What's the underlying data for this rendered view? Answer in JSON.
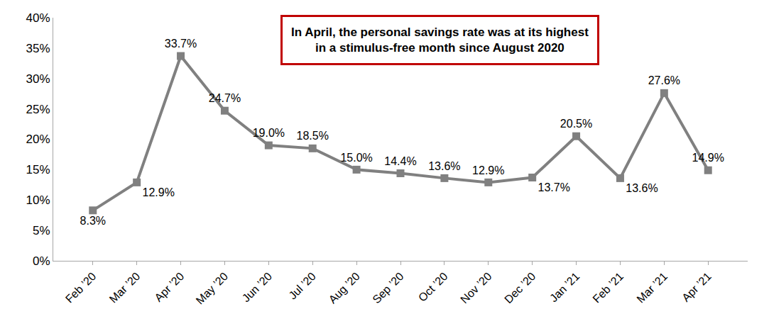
{
  "chart_data": {
    "type": "line",
    "title": "In April, the personal savings rate was at its highest\nin a stimulus-free month since August 2020",
    "categories": [
      "Feb ’20",
      "Mar ’20",
      "Apr ’20",
      "May ’20",
      "Jun ’20",
      "Jul ’20",
      "Aug ’20",
      "Sep ’20",
      "Oct ’20",
      "Nov ’20",
      "Dec ’20",
      "Jan ’21",
      "Feb ’21",
      "Mar ’21",
      "Apr ’21"
    ],
    "values": [
      8.3,
      12.9,
      33.7,
      24.7,
      19.0,
      18.5,
      15.0,
      14.4,
      13.6,
      12.9,
      13.7,
      20.5,
      13.6,
      27.6,
      14.9
    ],
    "value_labels": [
      "8.3%",
      "12.9%",
      "33.7%",
      "24.7%",
      "19.0%",
      "18.5%",
      "15.0%",
      "14.4%",
      "13.6%",
      "12.9%",
      "13.7%",
      "20.5%",
      "13.6%",
      "27.6%",
      "14.9%"
    ],
    "color": "#808080",
    "marker": "square",
    "data_labels": true,
    "grid": false,
    "ylim": [
      0,
      40
    ],
    "yticks": [
      {
        "value": 0,
        "label": "0%"
      },
      {
        "value": 5,
        "label": "5%"
      },
      {
        "value": 10,
        "label": "10%"
      },
      {
        "value": 15,
        "label": "15%"
      },
      {
        "value": 20,
        "label": "20%"
      },
      {
        "value": 25,
        "label": "25%"
      },
      {
        "value": 30,
        "label": "30%"
      },
      {
        "value": 35,
        "label": "35%"
      },
      {
        "value": 40,
        "label": "40%"
      }
    ]
  }
}
